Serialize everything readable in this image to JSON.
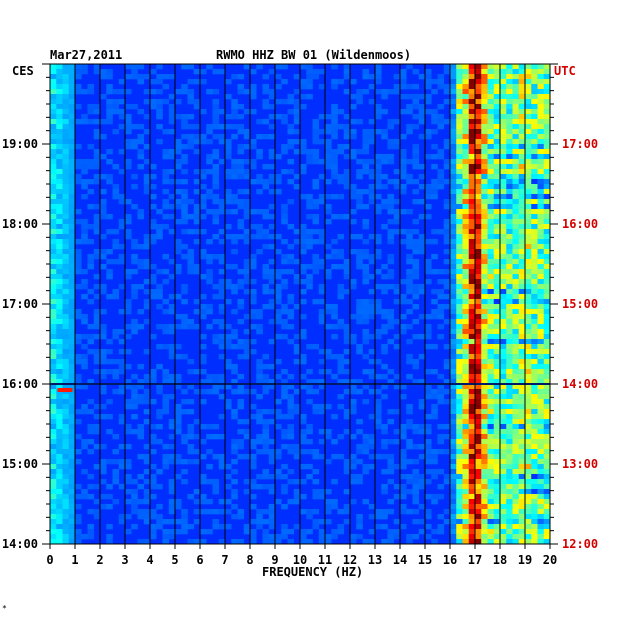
{
  "header": {
    "date": "Mar27,2011",
    "title": "RWMO HHZ BW 01 (Wildenmoos)"
  },
  "timezones": {
    "left": "CES",
    "right": "UTC"
  },
  "colors": {
    "right_axis": "#d40000",
    "low": "#0a1a8c",
    "mid": "#00c8ff",
    "high": "#ffe800",
    "peak": "#e00000"
  },
  "footnote": "*",
  "chart_data": {
    "type": "heatmap",
    "title": "RWMO HHZ BW 01 (Wildenmoos)",
    "xlabel": "FREQUENCY (HZ)",
    "xlim": [
      0,
      20
    ],
    "x_ticks": [
      "0",
      "1",
      "2",
      "3",
      "4",
      "5",
      "6",
      "7",
      "8",
      "9",
      "10",
      "11",
      "12",
      "13",
      "14",
      "15",
      "16",
      "17",
      "18",
      "19",
      "20"
    ],
    "y_left_ticks": [
      "14:00",
      "15:00",
      "16:00",
      "17:00",
      "18:00",
      "19:00"
    ],
    "y_right_ticks": [
      "12:00",
      "13:00",
      "14:00",
      "15:00",
      "16:00",
      "17:00"
    ],
    "y_left_label": "CES",
    "y_right_label": "UTC",
    "grid": "vertical lines at each integer frequency",
    "colorscale": "blue (low) - cyan - yellow - red (high)",
    "features": [
      {
        "name": "high energy band",
        "freq_range_hz": [
          16.2,
          20
        ],
        "level": "high"
      },
      {
        "name": "low frequency band",
        "freq_range_hz": [
          0,
          1
        ],
        "level": "medium"
      },
      {
        "name": "horizontal event",
        "time_utc": "14:00",
        "freq_range_hz": [
          0,
          20
        ],
        "level": "high"
      }
    ]
  }
}
